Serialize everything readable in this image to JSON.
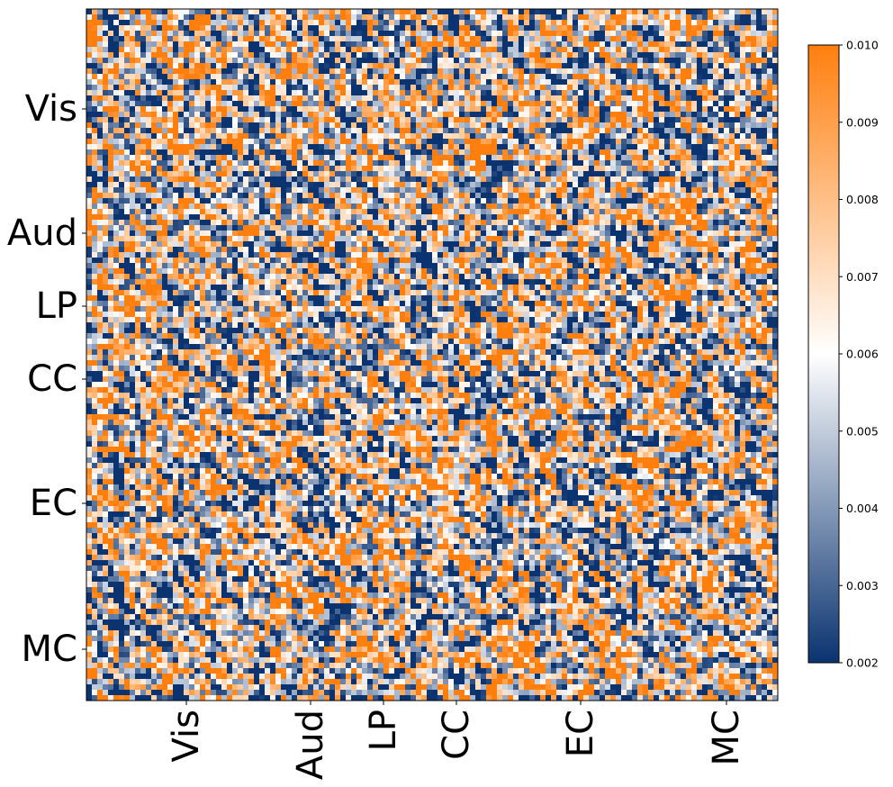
{
  "chart_data": {
    "type": "heatmap",
    "grid_size": 128,
    "row_tick_labels": [
      "Vis",
      "Aud",
      "LP",
      "CC",
      "EC",
      "MC"
    ],
    "row_tick_index": [
      18.5,
      41.5,
      55,
      68.5,
      91.5,
      118.5
    ],
    "col_tick_labels": [
      "Vis",
      "Aud",
      "LP",
      "CC",
      "EC",
      "MC"
    ],
    "col_tick_index": [
      18.5,
      41.5,
      55,
      68.5,
      91.5,
      118.5
    ],
    "value_range": [
      0.002,
      0.01
    ],
    "colorbar": {
      "ticks": [
        "0.010",
        "0.009",
        "0.008",
        "0.007",
        "0.006",
        "0.005",
        "0.004",
        "0.003",
        "0.002"
      ],
      "tick_values": [
        0.01,
        0.009,
        0.008,
        0.007,
        0.006,
        0.005,
        0.004,
        0.003,
        0.002
      ],
      "colors": [
        "#0a3370",
        "#ffffff",
        "#ff7f0e"
      ]
    }
  }
}
